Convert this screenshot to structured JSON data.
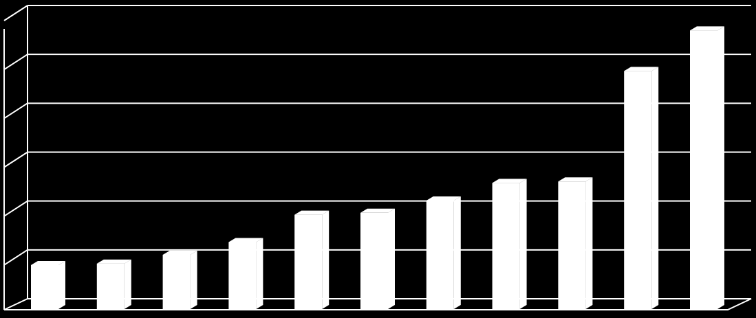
{
  "chart_data": {
    "type": "bar",
    "style": "3d-column",
    "categories": [
      "",
      "",
      "",
      "",
      "",
      "",
      "",
      "",
      "",
      "",
      ""
    ],
    "values": [
      0.9,
      0.93,
      1.11,
      1.37,
      1.93,
      1.97,
      2.22,
      2.58,
      2.61,
      4.87,
      5.7
    ],
    "title": "",
    "xlabel": "",
    "ylabel": "",
    "ylim": [
      0,
      6
    ],
    "grid": true,
    "legend": "none",
    "colors": {
      "background": "#000000",
      "bar": "#ffffff",
      "grid": "#ffffff"
    }
  }
}
